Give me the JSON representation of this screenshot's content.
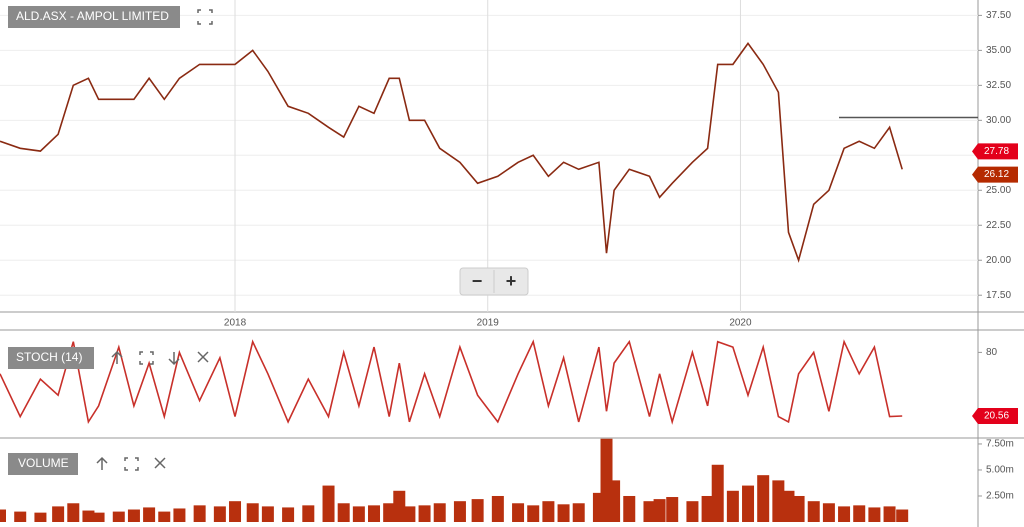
{
  "chart_data": [
    {
      "type": "line",
      "title": "ALD.ASX - AMPOL LIMITED",
      "color": "#8a2a12",
      "grid": true,
      "x": [
        2017.07,
        2017.15,
        2017.23,
        2017.3,
        2017.36,
        2017.42,
        2017.46,
        2017.54,
        2017.6,
        2017.66,
        2017.72,
        2017.78,
        2017.86,
        2017.94,
        2018.0,
        2018.07,
        2018.13,
        2018.21,
        2018.29,
        2018.37,
        2018.43,
        2018.49,
        2018.55,
        2018.61,
        2018.65,
        2018.69,
        2018.75,
        2018.81,
        2018.89,
        2018.96,
        2019.04,
        2019.12,
        2019.18,
        2019.24,
        2019.3,
        2019.36,
        2019.44,
        2019.47,
        2019.5,
        2019.56,
        2019.64,
        2019.68,
        2019.73,
        2019.81,
        2019.87,
        2019.91,
        2019.97,
        2020.03,
        2020.09,
        2020.15,
        2020.19,
        2020.23,
        2020.29,
        2020.35,
        2020.41,
        2020.47,
        2020.53,
        2020.59,
        2020.64
      ],
      "values": [
        28.5,
        28.0,
        27.8,
        29,
        32.5,
        33,
        31.5,
        31.5,
        31.5,
        33,
        31.5,
        33,
        34,
        34,
        34,
        35,
        33.5,
        31,
        30.5,
        29.5,
        28.8,
        31,
        30.5,
        33,
        33,
        30,
        30,
        28,
        27,
        25.5,
        26,
        27,
        27.5,
        26,
        27,
        26.5,
        27,
        20.5,
        25,
        26.5,
        26,
        24.5,
        25.5,
        27,
        28,
        34,
        34,
        35.5,
        34,
        32,
        22,
        20,
        24,
        25,
        28,
        28.5,
        28,
        29.5,
        26.5
      ],
      "xlim": [
        2017.07,
        2020.94
      ],
      "xticks": [
        2018,
        2019,
        2020
      ],
      "ylim": [
        16.3,
        38.6
      ],
      "yticks": [
        {
          "value": 17.5,
          "label": "17.50"
        },
        {
          "value": 20,
          "label": "20.00"
        },
        {
          "value": 22.5,
          "label": "22.50"
        },
        {
          "value": 25,
          "label": "25.00"
        },
        {
          "value": 27.5,
          "label": "27.50"
        },
        {
          "value": 30,
          "label": "30.00"
        },
        {
          "value": 32.5,
          "label": "32.50"
        },
        {
          "value": 35,
          "label": "35.00"
        },
        {
          "value": 37.5,
          "label": "37.50"
        }
      ],
      "hline": {
        "y": 30.2,
        "x": 2020.39
      },
      "markers": [
        {
          "value": 27.78,
          "color": "#e3001b"
        },
        {
          "value": 26.12,
          "color": "#b52a00"
        }
      ]
    },
    {
      "type": "line",
      "title": "STOCH (14)",
      "color": "#c8302a",
      "x": [
        2017.07,
        2017.15,
        2017.23,
        2017.3,
        2017.36,
        2017.42,
        2017.46,
        2017.54,
        2017.6,
        2017.66,
        2017.72,
        2017.78,
        2017.86,
        2017.94,
        2018.0,
        2018.07,
        2018.13,
        2018.21,
        2018.29,
        2018.37,
        2018.43,
        2018.49,
        2018.55,
        2018.61,
        2018.65,
        2018.69,
        2018.75,
        2018.81,
        2018.89,
        2018.96,
        2019.04,
        2019.12,
        2019.18,
        2019.24,
        2019.3,
        2019.36,
        2019.44,
        2019.47,
        2019.5,
        2019.56,
        2019.64,
        2019.68,
        2019.73,
        2019.81,
        2019.87,
        2019.91,
        2019.97,
        2020.03,
        2020.09,
        2020.15,
        2020.19,
        2020.23,
        2020.29,
        2020.35,
        2020.41,
        2020.47,
        2020.53,
        2020.59,
        2020.64
      ],
      "values": [
        60,
        20,
        55,
        40,
        90,
        15,
        30,
        85,
        30,
        70,
        20,
        80,
        35,
        75,
        20,
        90,
        60,
        15,
        55,
        20,
        80,
        30,
        85,
        20,
        70,
        15,
        60,
        20,
        85,
        40,
        15,
        60,
        90,
        30,
        75,
        15,
        85,
        25,
        70,
        90,
        20,
        60,
        15,
        80,
        30,
        90,
        85,
        40,
        85,
        20,
        15,
        60,
        80,
        25,
        90,
        60,
        85,
        20,
        20.56
      ],
      "xlim": [
        2017.07,
        2020.94
      ],
      "ylim": [
        0,
        100
      ],
      "yticks": [
        80
      ],
      "last_marker_color": "#e3001b"
    },
    {
      "type": "bar",
      "title": "VOLUME",
      "color": "#b8300e",
      "x": [
        2017.07,
        2017.15,
        2017.23,
        2017.3,
        2017.36,
        2017.42,
        2017.46,
        2017.54,
        2017.6,
        2017.66,
        2017.72,
        2017.78,
        2017.86,
        2017.94,
        2018.0,
        2018.07,
        2018.13,
        2018.21,
        2018.29,
        2018.37,
        2018.43,
        2018.49,
        2018.55,
        2018.61,
        2018.65,
        2018.69,
        2018.75,
        2018.81,
        2018.89,
        2018.96,
        2019.04,
        2019.12,
        2019.18,
        2019.24,
        2019.3,
        2019.36,
        2019.44,
        2019.47,
        2019.5,
        2019.56,
        2019.64,
        2019.68,
        2019.73,
        2019.81,
        2019.87,
        2019.91,
        2019.97,
        2020.03,
        2020.09,
        2020.15,
        2020.19,
        2020.23,
        2020.29,
        2020.35,
        2020.41,
        2020.47,
        2020.53,
        2020.59,
        2020.64
      ],
      "values": [
        1200000,
        1000000,
        900000,
        1500000,
        1800000,
        1100000,
        900000,
        1000000,
        1200000,
        1400000,
        1000000,
        1300000,
        1600000,
        1500000,
        2000000,
        1800000,
        1500000,
        1400000,
        1600000,
        3500000,
        1800000,
        1500000,
        1600000,
        1800000,
        3000000,
        1500000,
        1600000,
        1800000,
        2000000,
        2200000,
        2500000,
        1800000,
        1600000,
        2000000,
        1700000,
        1800000,
        2800000,
        8000000,
        4000000,
        2500000,
        2000000,
        2200000,
        2400000,
        2000000,
        2500000,
        5500000,
        3000000,
        3500000,
        4500000,
        4000000,
        3000000,
        2500000,
        2000000,
        1800000,
        1500000,
        1600000,
        1400000,
        1500000,
        1200000
      ],
      "xlim": [
        2017.07,
        2020.94
      ],
      "ylim": [
        0,
        7880000
      ],
      "yticks": [
        {
          "value": 2500000,
          "label": "2.50m"
        },
        {
          "value": 5000000,
          "label": "5.00m"
        },
        {
          "value": 7500000,
          "label": "7.50m"
        }
      ]
    }
  ],
  "controls": {
    "zoom_out": "−",
    "zoom_in": "+"
  }
}
